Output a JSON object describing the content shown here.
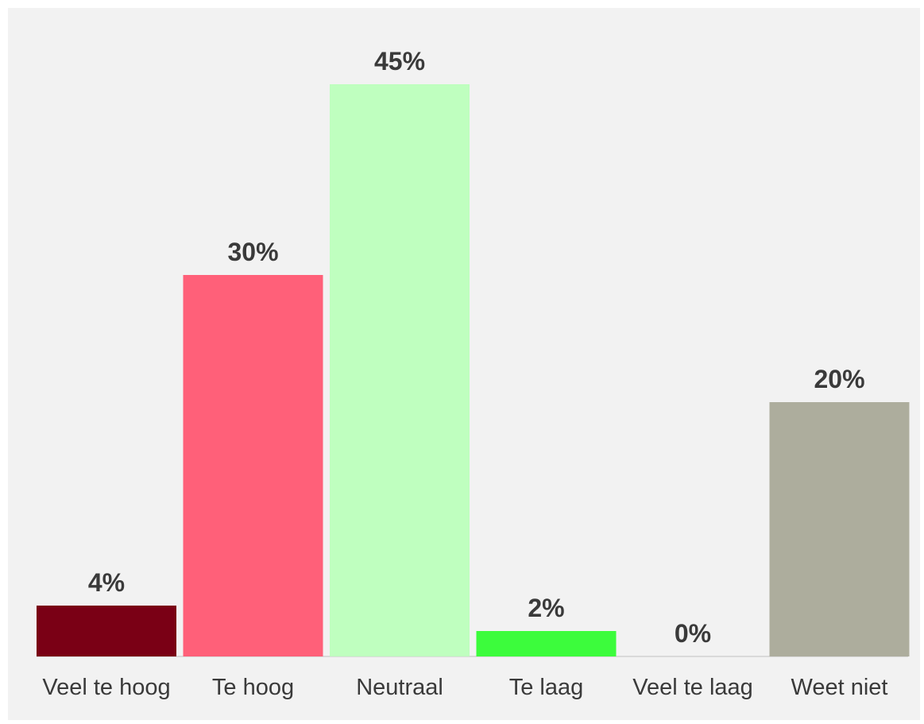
{
  "chart_data": {
    "type": "bar",
    "categories": [
      "Veel te hoog",
      "Te hoog",
      "Neutraal",
      "Te laag",
      "Veel te laag",
      "Weet niet"
    ],
    "values": [
      4,
      30,
      45,
      2,
      0,
      20
    ],
    "value_labels": [
      "4%",
      "30%",
      "45%",
      "2%",
      "0%",
      "20%"
    ],
    "colors": [
      "#7a0015",
      "#ff6079",
      "#bfffbf",
      "#3cfc3c",
      "#bfbfbf",
      "#adad9d"
    ],
    "title": "",
    "xlabel": "",
    "ylabel": "",
    "ylim": [
      0,
      45
    ],
    "grid": false,
    "legend": "none",
    "baseline_color": "#d9d9d9"
  }
}
